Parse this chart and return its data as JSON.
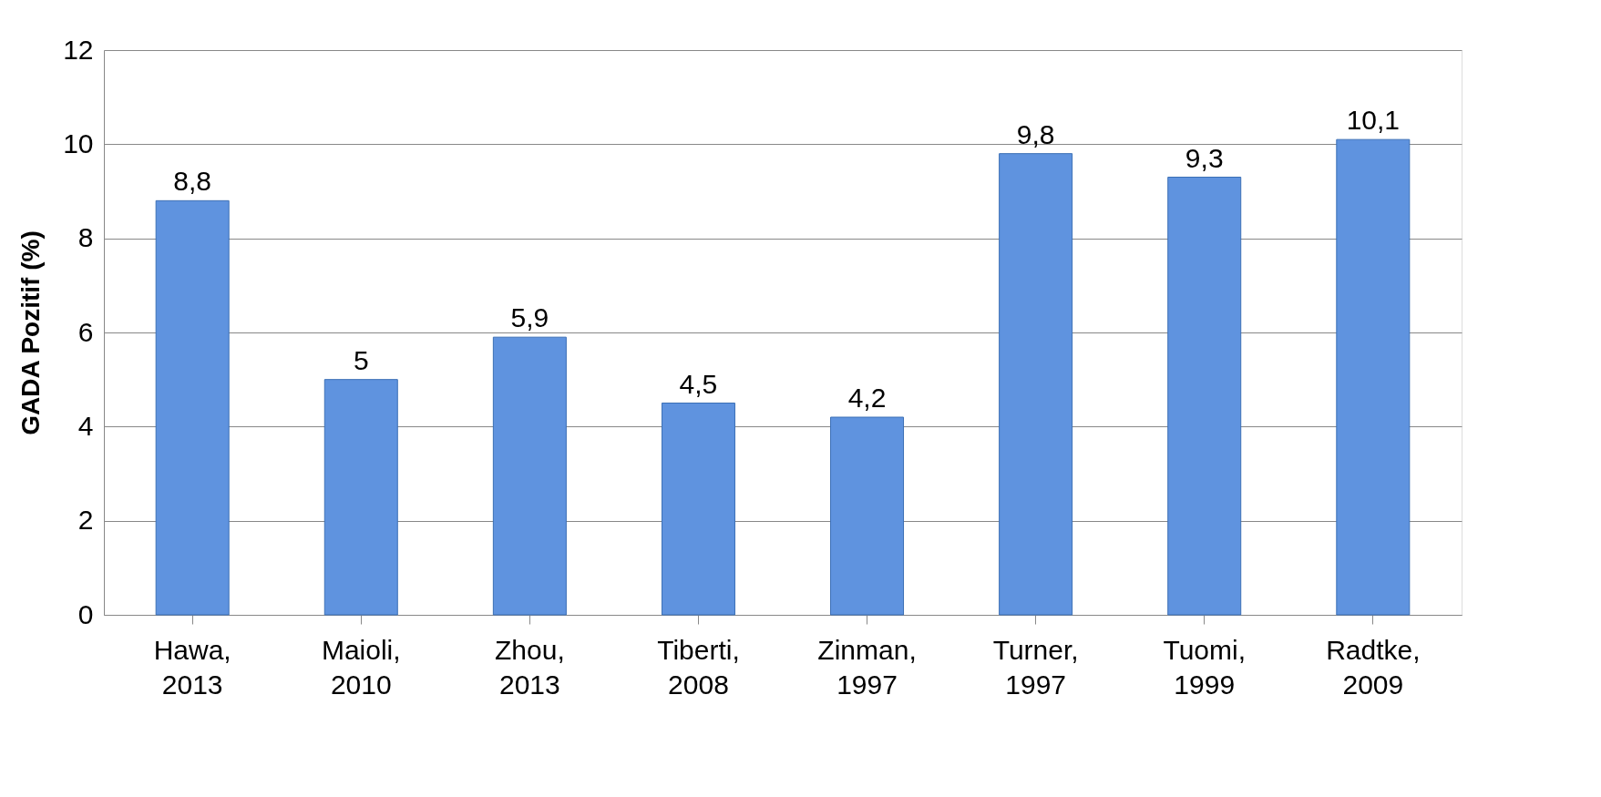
{
  "chart_data": {
    "type": "bar",
    "categories": [
      "Hawa, 2013",
      "Maioli, 2010",
      "Zhou, 2013",
      "Tiberti, 2008",
      "Zinman, 1997",
      "Turner, 1997",
      "Tuomi, 1999",
      "Radtke, 2009"
    ],
    "values": [
      8.8,
      5,
      5.9,
      4.5,
      4.2,
      9.8,
      9.3,
      10.1
    ],
    "value_labels": [
      "8,8",
      "5",
      "5,9",
      "4,5",
      "4,2",
      "9,8",
      "9,3",
      "10,1"
    ],
    "color": "#5f93df",
    "ylabel": "GADA Pozitif (%)",
    "ylim": [
      0,
      12
    ],
    "yticks": [
      0,
      2,
      4,
      6,
      8,
      10,
      12
    ],
    "grid": "y"
  }
}
